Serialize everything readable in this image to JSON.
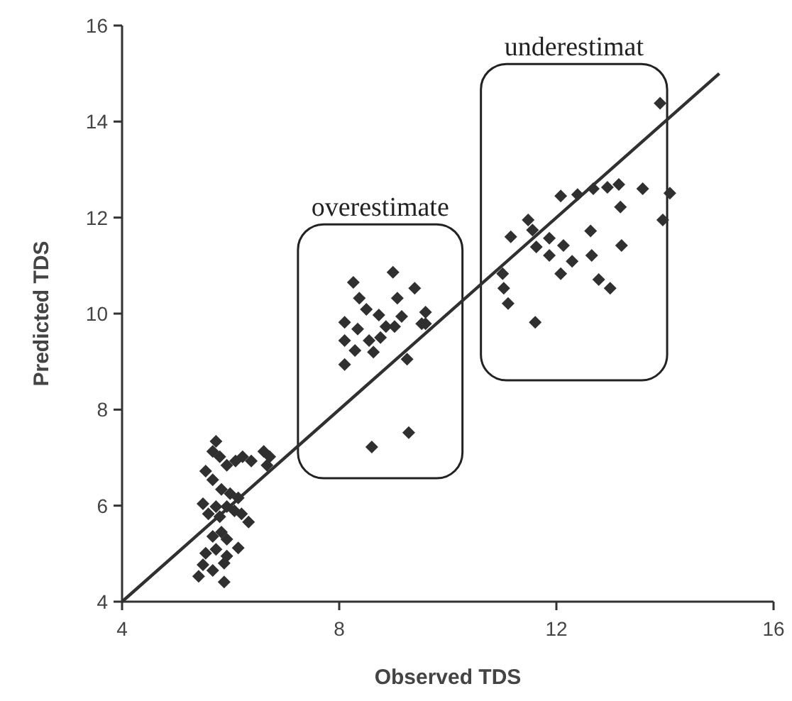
{
  "chart_data": {
    "type": "scatter",
    "xlabel": "Observed TDS",
    "ylabel": "Predicted TDS",
    "xlim": [
      4,
      16
    ],
    "xticks": [
      4,
      8,
      12,
      16
    ],
    "ylim": [
      4,
      16
    ],
    "yticks": [
      4,
      6,
      8,
      10,
      12,
      14,
      16
    ],
    "marker": "diamond",
    "annotations": [
      "overestimate",
      "underestimat"
    ],
    "series": [
      {
        "color": "#303030",
        "x": [
          5.73,
          5.67,
          5.8,
          5.93,
          6.09,
          6.22,
          6.38,
          6.61,
          6.72,
          6.67,
          5.54,
          5.67,
          5.83,
          5.99,
          6.14,
          5.49,
          5.73,
          5.93,
          6.07,
          5.59,
          5.8,
          6.2,
          6.33,
          5.83,
          5.93,
          5.67,
          5.54,
          5.73,
          5.93,
          6.14,
          5.49,
          5.67,
          5.88,
          5.41,
          5.88,
          8.99,
          8.26,
          8.37,
          9.39,
          9.59,
          8.5,
          8.73,
          8.1,
          9.15,
          9.02,
          8.34,
          8.1,
          8.55,
          8.29,
          8.76,
          8.63,
          8.1,
          9.25,
          9.52,
          8.6,
          9.28,
          9.07,
          9.59,
          8.86,
          13.91,
          14.09,
          13.96,
          13.59,
          13.15,
          12.94,
          12.68,
          12.39,
          12.08,
          13.18,
          11.48,
          11.56,
          11.16,
          11.87,
          11.63,
          12.13,
          11.87,
          12.63,
          13.2,
          12.65,
          12.29,
          12.08,
          11.01,
          11.03,
          11.11,
          12.78,
          12.99,
          11.61
        ],
        "values": [
          7.34,
          7.13,
          7.02,
          6.84,
          6.93,
          7.02,
          6.93,
          7.13,
          7.02,
          6.84,
          6.72,
          6.54,
          6.34,
          6.25,
          6.16,
          6.04,
          5.98,
          5.98,
          5.89,
          5.83,
          5.77,
          5.83,
          5.66,
          5.45,
          5.3,
          5.36,
          5.01,
          5.09,
          4.95,
          5.12,
          4.77,
          4.65,
          4.41,
          4.53,
          4.8,
          10.86,
          10.65,
          10.32,
          10.53,
          10.03,
          10.09,
          9.97,
          9.82,
          9.94,
          9.73,
          9.68,
          9.44,
          9.44,
          9.23,
          9.5,
          9.2,
          8.94,
          9.05,
          9.79,
          7.22,
          7.52,
          10.32,
          9.79,
          9.73,
          14.38,
          12.51,
          11.95,
          12.6,
          12.69,
          12.63,
          12.6,
          12.48,
          12.45,
          12.22,
          11.95,
          11.74,
          11.6,
          11.57,
          11.39,
          11.42,
          11.21,
          11.72,
          11.42,
          11.21,
          11.09,
          10.83,
          10.83,
          10.53,
          10.21,
          10.71,
          10.53,
          9.82
        ]
      },
      {
        "type": "line",
        "color": "#303030",
        "marker": "none",
        "x": [
          4,
          15
        ],
        "values": [
          4,
          15
        ]
      }
    ]
  }
}
